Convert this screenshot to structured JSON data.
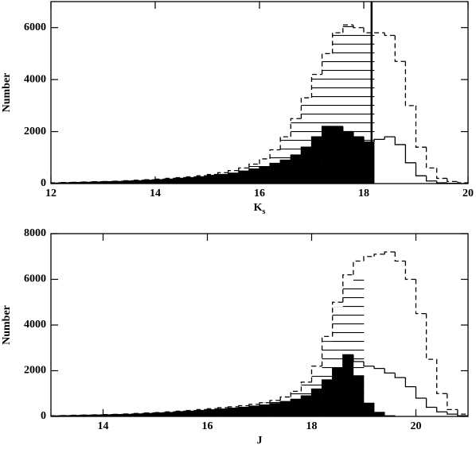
{
  "chart_data": [
    {
      "type": "histogram",
      "ylabel": "Number",
      "xlabel": "K",
      "xlabel_sub": "s",
      "xlim": [
        12,
        20
      ],
      "ylim": [
        0,
        7000
      ],
      "xticks": [
        12,
        14,
        16,
        18,
        20
      ],
      "yticks": [
        0,
        2000,
        4000,
        6000
      ],
      "bins": [
        12.0,
        12.2,
        12.4,
        12.6,
        12.8,
        13.0,
        13.2,
        13.4,
        13.6,
        13.8,
        14.0,
        14.2,
        14.4,
        14.6,
        14.8,
        15.0,
        15.2,
        15.4,
        15.6,
        15.8,
        16.0,
        16.2,
        16.4,
        16.6,
        16.8,
        17.0,
        17.2,
        17.4,
        17.6,
        17.8,
        18.0,
        18.2,
        18.4,
        18.6,
        18.8,
        19.0,
        19.2,
        19.4,
        19.6,
        19.8,
        20.0
      ],
      "cutoff_line": 18.15,
      "series": [
        {
          "style": "hatched",
          "color": "#000000",
          "values": [
            30,
            40,
            50,
            60,
            70,
            80,
            90,
            110,
            130,
            150,
            170,
            200,
            230,
            260,
            300,
            350,
            420,
            500,
            600,
            750,
            950,
            1300,
            1800,
            2500,
            3300,
            4200,
            5000,
            5800,
            6100,
            6000,
            5800,
            0,
            0,
            0,
            0,
            0,
            0,
            0,
            0,
            0
          ]
        },
        {
          "style": "filled",
          "color": "#000000",
          "values": [
            20,
            30,
            40,
            50,
            60,
            70,
            80,
            100,
            110,
            130,
            150,
            170,
            200,
            230,
            260,
            300,
            350,
            400,
            480,
            560,
            650,
            780,
            900,
            1100,
            1400,
            1800,
            2200,
            2200,
            2000,
            1800,
            1600,
            0,
            0,
            0,
            0,
            0,
            0,
            0,
            0,
            0
          ]
        },
        {
          "style": "dashed",
          "color": "#000000",
          "values": [
            30,
            40,
            50,
            60,
            70,
            80,
            90,
            110,
            130,
            150,
            170,
            200,
            230,
            260,
            300,
            350,
            420,
            500,
            600,
            750,
            950,
            1300,
            1800,
            2500,
            3300,
            4200,
            5000,
            5800,
            6100,
            6000,
            5800,
            5800,
            5700,
            4700,
            3000,
            1400,
            600,
            200,
            80,
            30
          ]
        },
        {
          "style": "solid",
          "color": "#000000",
          "values": [
            20,
            30,
            40,
            50,
            60,
            70,
            80,
            100,
            110,
            130,
            150,
            170,
            200,
            230,
            260,
            300,
            350,
            400,
            480,
            560,
            650,
            780,
            900,
            1100,
            1400,
            1800,
            2200,
            2200,
            2000,
            1800,
            1600,
            1700,
            1800,
            1500,
            800,
            300,
            100,
            30,
            10,
            0
          ]
        }
      ]
    },
    {
      "type": "histogram",
      "ylabel": "Number",
      "xlabel": "J",
      "xlim": [
        13,
        21
      ],
      "ylim": [
        0,
        8000
      ],
      "xticks": [
        14,
        16,
        18,
        20
      ],
      "yticks": [
        0,
        2000,
        4000,
        6000,
        8000
      ],
      "bins": [
        13.0,
        13.2,
        13.4,
        13.6,
        13.8,
        14.0,
        14.2,
        14.4,
        14.6,
        14.8,
        15.0,
        15.2,
        15.4,
        15.6,
        15.8,
        16.0,
        16.2,
        16.4,
        16.6,
        16.8,
        17.0,
        17.2,
        17.4,
        17.6,
        17.8,
        18.0,
        18.2,
        18.4,
        18.6,
        18.8,
        19.0,
        19.2,
        19.4,
        19.6,
        19.8,
        20.0,
        20.2,
        20.4,
        20.6,
        20.8,
        21.0
      ],
      "series": [
        {
          "style": "hatched",
          "color": "#000000",
          "values": [
            30,
            40,
            50,
            60,
            70,
            80,
            90,
            110,
            130,
            150,
            170,
            200,
            230,
            260,
            300,
            340,
            380,
            420,
            470,
            530,
            600,
            700,
            850,
            1100,
            1500,
            2100,
            3300,
            4800,
            5700,
            6100,
            0,
            0,
            0,
            0,
            0,
            0,
            0,
            0,
            0,
            0
          ]
        },
        {
          "style": "filled",
          "color": "#000000",
          "values": [
            20,
            30,
            40,
            50,
            60,
            70,
            80,
            90,
            110,
            130,
            150,
            170,
            200,
            230,
            260,
            290,
            320,
            360,
            400,
            450,
            500,
            560,
            650,
            750,
            900,
            1200,
            1600,
            2100,
            2700,
            1800,
            600,
            200,
            50,
            0,
            0,
            0,
            0,
            0,
            0,
            0
          ]
        },
        {
          "style": "dashed",
          "color": "#000000",
          "values": [
            30,
            40,
            50,
            60,
            70,
            80,
            90,
            110,
            130,
            150,
            170,
            200,
            230,
            260,
            300,
            340,
            380,
            420,
            470,
            530,
            600,
            700,
            850,
            1100,
            1500,
            2200,
            3500,
            5000,
            6200,
            6800,
            7000,
            7100,
            7200,
            6800,
            6000,
            4500,
            2500,
            1000,
            300,
            100
          ]
        },
        {
          "style": "solid",
          "color": "#000000",
          "values": [
            20,
            30,
            40,
            50,
            60,
            70,
            80,
            90,
            110,
            130,
            150,
            170,
            200,
            230,
            260,
            290,
            320,
            360,
            400,
            450,
            500,
            560,
            650,
            750,
            900,
            1200,
            1600,
            2100,
            2700,
            2400,
            2200,
            2100,
            1900,
            1700,
            1300,
            800,
            400,
            200,
            100,
            30
          ]
        }
      ]
    }
  ]
}
